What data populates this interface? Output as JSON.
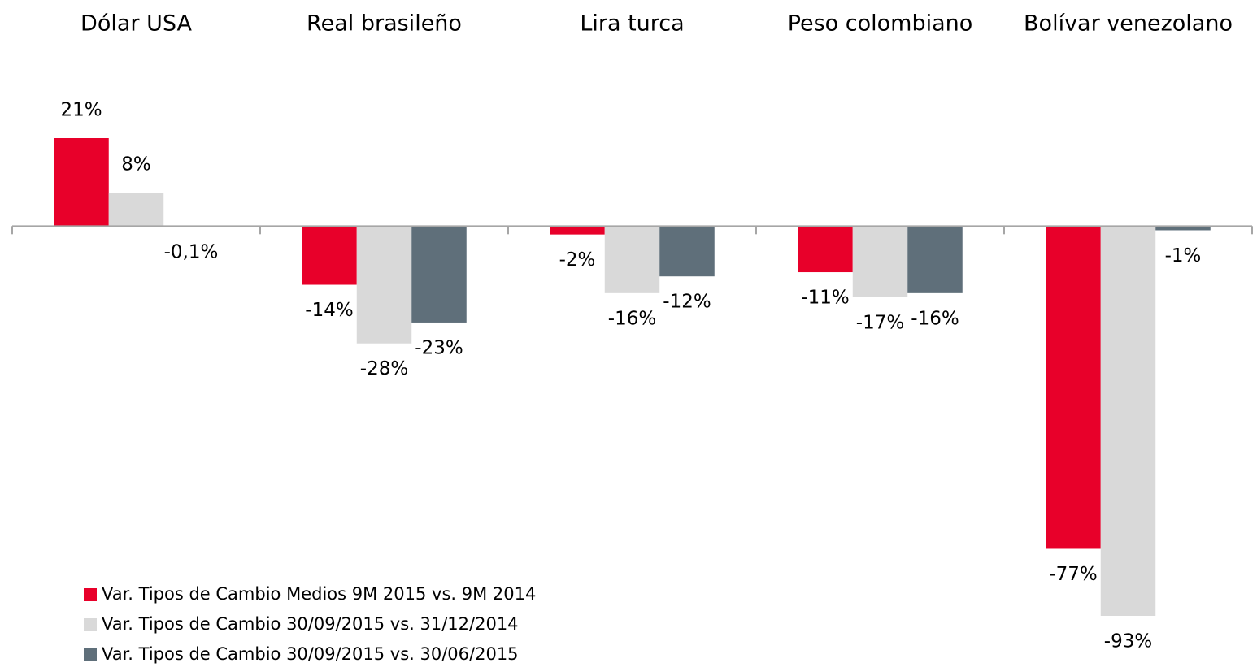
{
  "chart_data": {
    "type": "bar",
    "categories": [
      "Dólar USA",
      "Real brasileño",
      "Lira turca",
      "Peso colombiano",
      "Bolívar venezolano"
    ],
    "series": [
      {
        "name": "Var. Tipos de Cambio Medios 9M 2015 vs. 9M 2014",
        "color": "#e8002a",
        "values": [
          21,
          -14,
          -2,
          -11,
          -77
        ],
        "value_labels": [
          "21%",
          "-14%",
          "-2%",
          "-11%",
          "-77%"
        ]
      },
      {
        "name": "Var. Tipos de Cambio 30/09/2015 vs. 31/12/2014",
        "color": "#d9d9d9",
        "values": [
          8,
          -28,
          -16,
          -17,
          -93
        ],
        "value_labels": [
          "8%",
          "-28%",
          "-16%",
          "-17%",
          "-93%"
        ]
      },
      {
        "name": "Var. Tipos de Cambio 30/09/2015 vs. 30/06/2015",
        "color": "#5f6f7a",
        "values": [
          -0.1,
          -23,
          -12,
          -16,
          -1
        ],
        "value_labels": [
          "-0,1%",
          "-23%",
          "-12%",
          "-16%",
          "-1%"
        ]
      }
    ]
  }
}
